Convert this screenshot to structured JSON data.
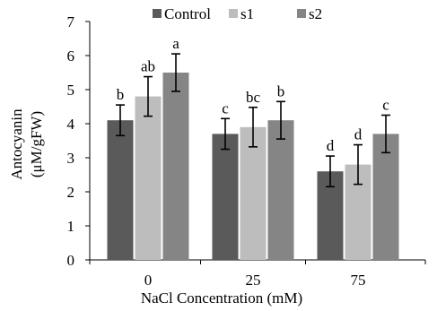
{
  "chart_data": {
    "type": "bar",
    "title": "",
    "xlabel": "NaCl Concentration (mM)",
    "ylabel_line1": "Antocyanin",
    "ylabel_line2": "(μM/gFW)",
    "ylim": [
      0,
      7
    ],
    "yticks": [
      "0",
      "1",
      "2",
      "3",
      "4",
      "5",
      "6",
      "7"
    ],
    "categories": [
      "0",
      "25",
      "75"
    ],
    "grid": false,
    "legend_position": "top",
    "series": [
      {
        "name": "Control",
        "color": "#5a5a5a",
        "values": [
          4.1,
          3.7,
          2.6
        ],
        "errors": [
          0.45,
          0.45,
          0.45
        ],
        "labels": [
          "b",
          "c",
          "d"
        ]
      },
      {
        "name": "s1",
        "color": "#bdbdbd",
        "values": [
          4.8,
          3.9,
          2.8
        ],
        "errors": [
          0.58,
          0.58,
          0.58
        ],
        "labels": [
          "ab",
          "bc",
          "d"
        ]
      },
      {
        "name": "s2",
        "color": "#858585",
        "values": [
          5.5,
          4.1,
          3.7
        ],
        "errors": [
          0.55,
          0.55,
          0.55
        ],
        "labels": [
          "a",
          "b",
          "c"
        ]
      }
    ]
  }
}
